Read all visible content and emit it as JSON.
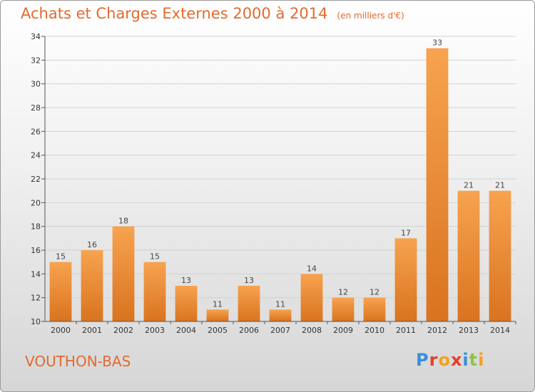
{
  "header": {
    "title": "Achats et Charges Externes 2000 à 2014",
    "unit": "(en milliers d'€)"
  },
  "footer": {
    "town": "VOUTHON-BAS",
    "brand": "Proxiti"
  },
  "colors": {
    "accent": "#e36a2e",
    "bar_light": "#f7a34f",
    "bar_dark": "#d9731f"
  },
  "chart_data": {
    "type": "bar",
    "title": "Achats et Charges Externes 2000 à 2014",
    "subtitle": "(en milliers d'€)",
    "categories": [
      "2000",
      "2001",
      "2002",
      "2003",
      "2004",
      "2005",
      "2006",
      "2007",
      "2008",
      "2009",
      "2010",
      "2011",
      "2012",
      "2013",
      "2014"
    ],
    "values": [
      15,
      16,
      18,
      15,
      13,
      11,
      13,
      11,
      14,
      12,
      12,
      17,
      33,
      21,
      21
    ],
    "ylim": [
      10,
      34
    ],
    "yticks": [
      10,
      12,
      14,
      16,
      18,
      20,
      22,
      24,
      26,
      28,
      30,
      32,
      34
    ],
    "grid": true,
    "legend": "none"
  }
}
